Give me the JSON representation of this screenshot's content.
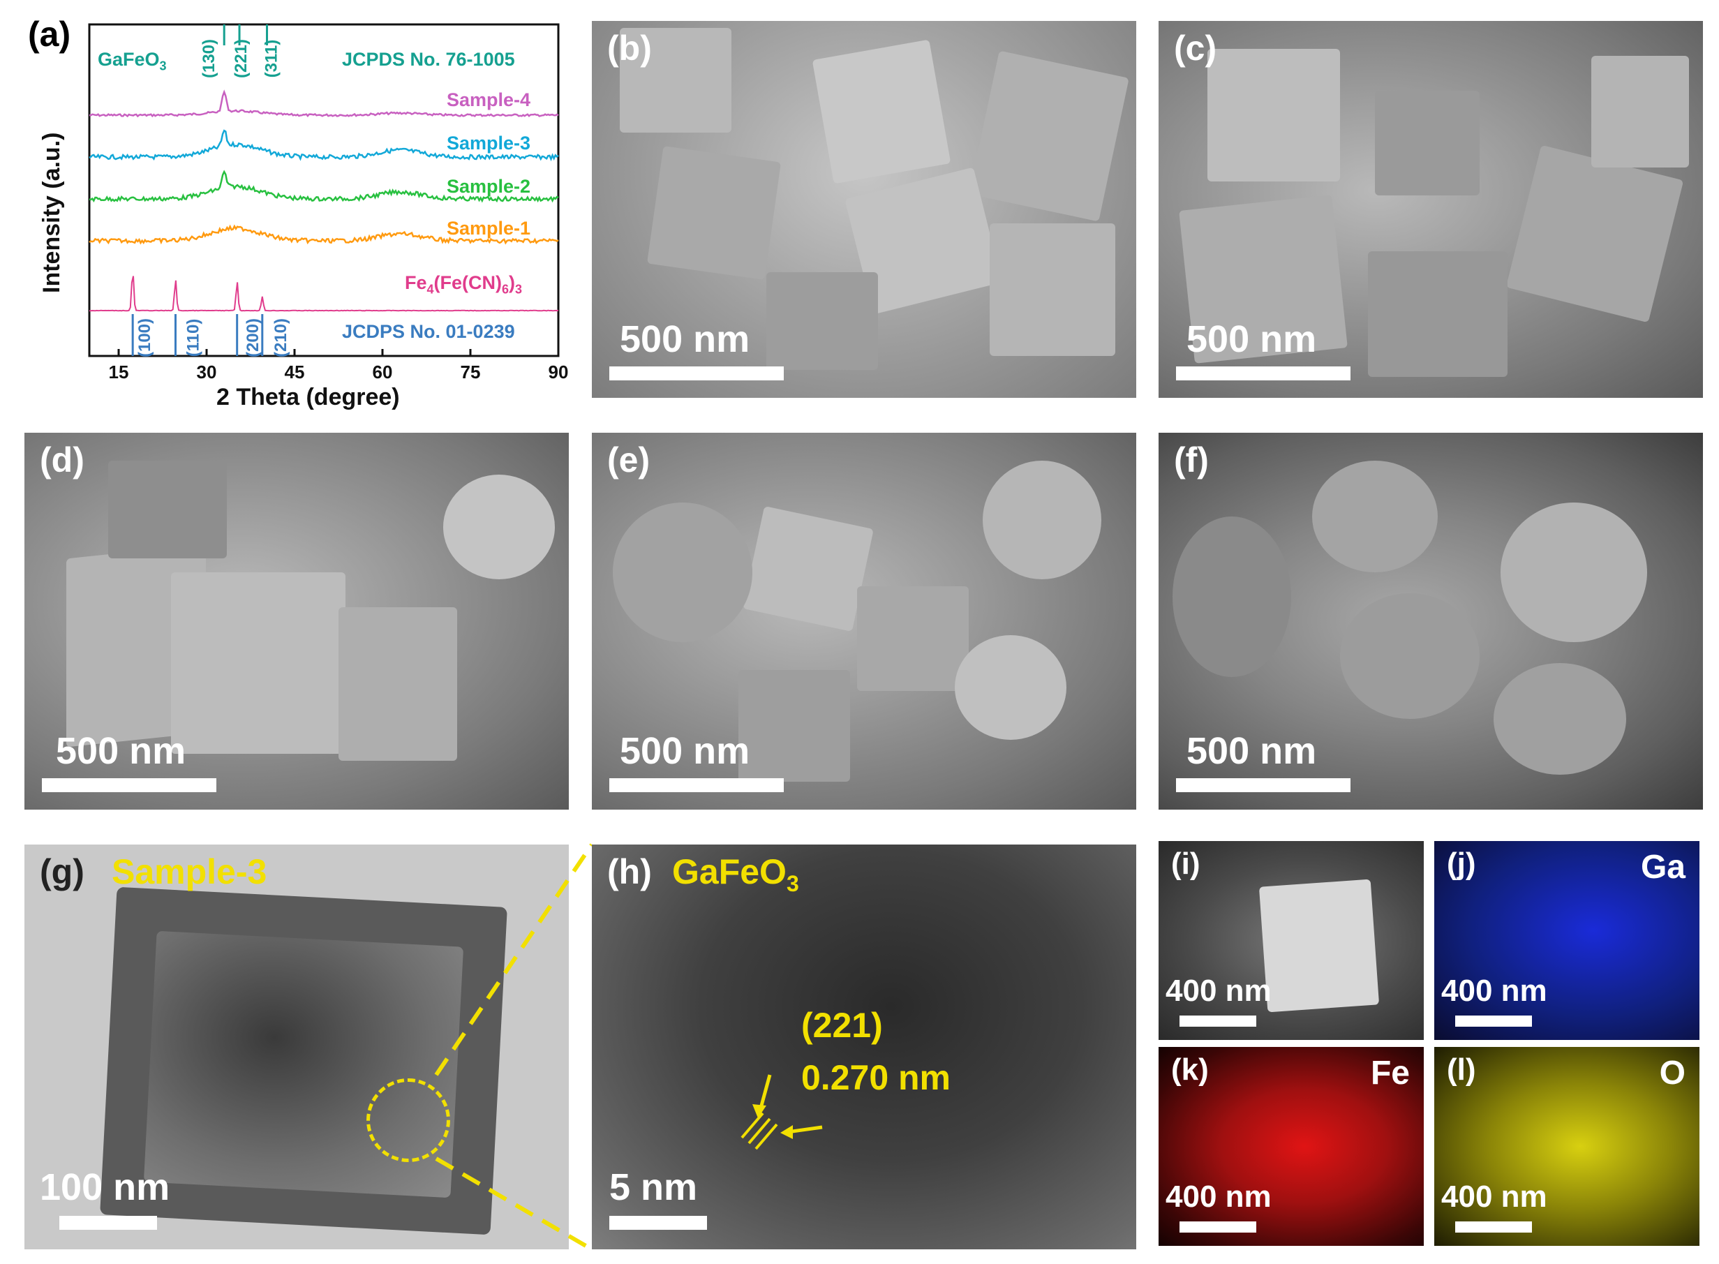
{
  "panels": {
    "a": {
      "label": "(a)"
    },
    "b": {
      "label": "(b)",
      "scale": "500 nm"
    },
    "c": {
      "label": "(c)",
      "scale": "500 nm"
    },
    "d": {
      "label": "(d)",
      "scale": "500 nm"
    },
    "e": {
      "label": "(e)",
      "scale": "500 nm"
    },
    "f": {
      "label": "(f)",
      "scale": "500 nm"
    },
    "g": {
      "label": "(g)",
      "caption": "Sample-3",
      "scale": "100 nm"
    },
    "h": {
      "label": "(h)",
      "caption_main": "GaFeO",
      "caption_sub": "3",
      "scale": "5 nm",
      "annot_plane": "(221)",
      "annot_d": "0.270 nm"
    },
    "i": {
      "label": "(i)",
      "scale": "400 nm"
    },
    "j": {
      "label": "(j)",
      "element": "Ga",
      "scale": "400 nm",
      "color": "#1a2bd8"
    },
    "k": {
      "label": "(k)",
      "element": "Fe",
      "scale": "400 nm",
      "color": "#e01414"
    },
    "l": {
      "label": "(l)",
      "element": "O",
      "scale": "400 nm",
      "color": "#d8d010"
    }
  },
  "chart_data": {
    "type": "line",
    "xlabel": "2 Theta (degree)",
    "ylabel": "Intensity (a.u.)",
    "xlim": [
      10,
      90
    ],
    "xticks": [
      15,
      30,
      45,
      60,
      75,
      90
    ],
    "top_ref": {
      "phase": "GaFeO",
      "phase_sub": "3",
      "card": "JCPDS No. 76-1005",
      "color": "#15a090",
      "peaks": [
        {
          "x": 33.0,
          "label": "(130)"
        },
        {
          "x": 35.6,
          "label": "(221)"
        },
        {
          "x": 40.3,
          "label": "(311)"
        }
      ]
    },
    "bottom_ref": {
      "card": "JCDPS No. 01-0239",
      "color": "#3a7cc0",
      "peaks": [
        {
          "x": 17.4,
          "label": "(100)"
        },
        {
          "x": 24.7,
          "label": "(110)"
        },
        {
          "x": 35.2,
          "label": "(200)"
        },
        {
          "x": 39.5,
          "label": "(210)"
        }
      ]
    },
    "series": [
      {
        "name": "Sample-4",
        "color": "#c860c0"
      },
      {
        "name": "Sample-3",
        "color": "#12a8d8"
      },
      {
        "name": "Sample-2",
        "color": "#28c040"
      },
      {
        "name": "Sample-1",
        "color": "#ff9a10"
      },
      {
        "name": "Fe4(Fe(CN)6)3",
        "label_main": "Fe",
        "sub1": "4",
        "mid": "(Fe(CN)",
        "sub2": "6",
        "end": ")",
        "sub3": "3",
        "color": "#e03c8c"
      }
    ]
  }
}
